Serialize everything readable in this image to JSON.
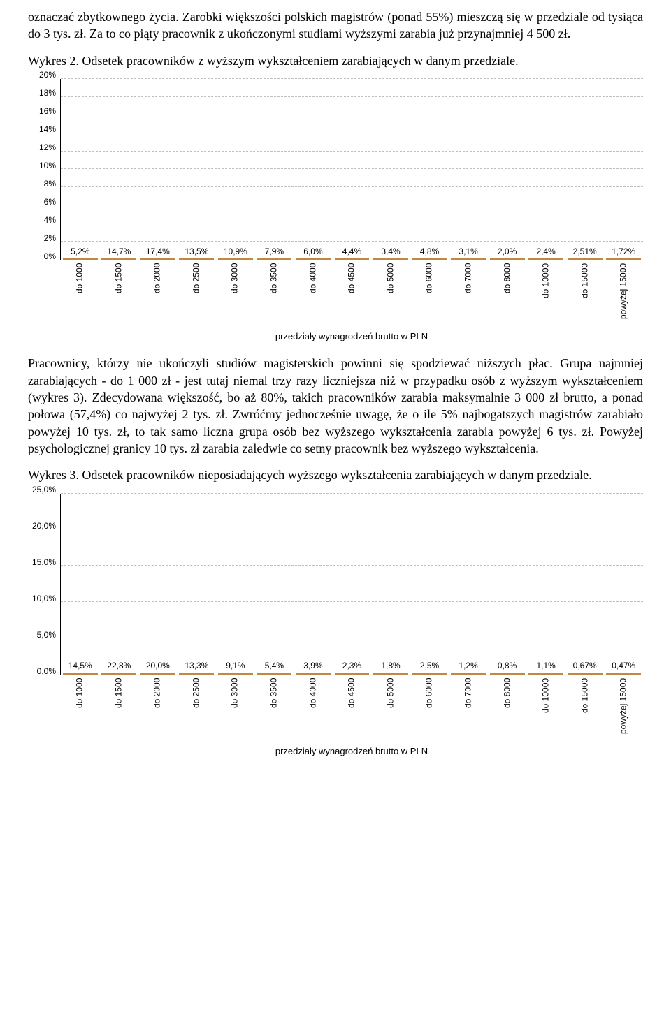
{
  "para1": "oznaczać zbytkownego życia. Zarobki większości polskich magistrów (ponad 55%) mieszczą się w przedziale od tysiąca do 3 tys. zł. Za to co piąty pracownik z ukończonymi studiami wyższymi zarabia już przynajmniej 4 500 zł.",
  "caption2": "Wykres 2. Odsetek pracowników z wyższym wykształceniem zarabiających w danym przedziale.",
  "para2": "Pracownicy, którzy nie ukończyli studiów magisterskich powinni się spodziewać niższych płac. Grupa najmniej zarabiających - do 1 000 zł - jest tutaj niemal trzy razy liczniejsza niż w przypadku osób z wyższym wykształceniem (wykres 3). Zdecydowana większość, bo aż 80%, takich pracowników zarabia maksymalnie 3 000 zł brutto, a ponad połowa (57,4%) co najwyżej 2 tys. zł. Zwróćmy jednocześnie uwagę, że o ile 5% najbogatszych magistrów zarabiało powyżej 10 tys. zł, to tak samo liczna grupa osób bez wyższego wykształcenia zarabia powyżej 6 tys. zł. Powyżej psychologicznej granicy 10 tys. zł zarabia zaledwie co setny pracownik bez wyższego wykształcenia.",
  "caption3": "Wykres 3. Odsetek pracowników nieposiadających wyższego wykształcenia zarabiających w danym przedziale.",
  "chart2": {
    "type": "bar",
    "categories": [
      "do 1000",
      "do 1500",
      "do 2000",
      "do 2500",
      "do 3000",
      "do 3500",
      "do 4000",
      "do 4500",
      "do 5000",
      "do 6000",
      "do 7000",
      "do 8000",
      "do 10000",
      "do 15000",
      "powyżej 15000"
    ],
    "values": [
      5.2,
      14.7,
      17.4,
      13.5,
      10.9,
      7.9,
      6.0,
      4.4,
      3.4,
      4.8,
      3.1,
      2.0,
      2.4,
      2.51,
      1.72
    ],
    "labels": [
      "5,2%",
      "14,7%",
      "17,4%",
      "13,5%",
      "10,9%",
      "7,9%",
      "6,0%",
      "4,4%",
      "3,4%",
      "4,8%",
      "3,1%",
      "2,0%",
      "2,4%",
      "2,51%",
      "1,72%"
    ],
    "ymax": 20,
    "yticks": [
      "20%",
      "18%",
      "16%",
      "14%",
      "12%",
      "10%",
      "8%",
      "6%",
      "4%",
      "2%",
      "0%"
    ],
    "ytick_vals": [
      20,
      18,
      16,
      14,
      12,
      10,
      8,
      6,
      4,
      2,
      0
    ],
    "bar_fill_top": "#fff2e0",
    "bar_fill_bottom": "#fcd39a",
    "bar_border": "#c08840",
    "grid_color": "#bfbfbf",
    "x_caption": "przedziały wynagrodzeń brutto w PLN",
    "label_fontsize": 12
  },
  "chart3": {
    "type": "bar",
    "categories": [
      "do 1000",
      "do 1500",
      "do 2000",
      "do 2500",
      "do 3000",
      "do 3500",
      "do 4000",
      "do 4500",
      "do 5000",
      "do 6000",
      "do 7000",
      "do 8000",
      "do 10000",
      "do 15000",
      "powyżej 15000"
    ],
    "values": [
      14.5,
      22.8,
      20.0,
      13.3,
      9.1,
      5.4,
      3.9,
      2.3,
      1.8,
      2.5,
      1.2,
      0.8,
      1.1,
      0.67,
      0.47
    ],
    "labels": [
      "14,5%",
      "22,8%",
      "20,0%",
      "13,3%",
      "9,1%",
      "5,4%",
      "3,9%",
      "2,3%",
      "1,8%",
      "2,5%",
      "1,2%",
      "0,8%",
      "1,1%",
      "0,67%",
      "0,47%"
    ],
    "ymax": 25,
    "yticks": [
      "25,0%",
      "20,0%",
      "15,0%",
      "10,0%",
      "5,0%",
      "0,0%"
    ],
    "ytick_vals": [
      25,
      20,
      15,
      10,
      5,
      0
    ],
    "bar_fill_top": "#fff2e0",
    "bar_fill_bottom": "#fcd39a",
    "bar_border": "#c08840",
    "grid_color": "#bfbfbf",
    "x_caption": "przedziały wynagrodzeń brutto w PLN",
    "label_fontsize": 12
  }
}
